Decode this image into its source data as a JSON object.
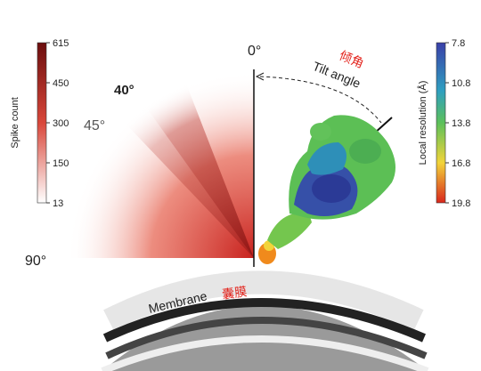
{
  "spike_colorbar": {
    "label": "Spike count",
    "ticks": [
      615,
      450,
      300,
      150,
      13
    ]
  },
  "angles": {
    "zero": "0°",
    "forty": "40°",
    "forty_five": "45°",
    "ninety": "90°"
  },
  "tilt": {
    "label_cn": "倾角",
    "label_en": "Tilt angle"
  },
  "resolution_colorbar": {
    "label": "Local resolution (Å)",
    "ticks": [
      7.8,
      10.8,
      13.8,
      16.8,
      19.8
    ]
  },
  "membrane": {
    "label_en": "Membrane",
    "label_cn": "囊膜"
  }
}
